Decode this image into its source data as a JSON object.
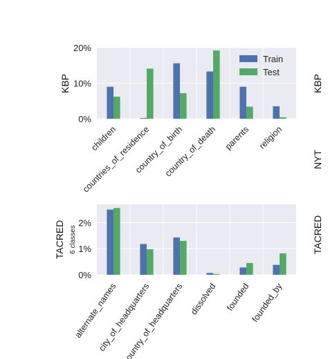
{
  "colors": {
    "train": "#4c72b0",
    "test": "#55a868",
    "plot_bg": "#eaeaf2",
    "grid": "#ffffff"
  },
  "chart_data": [
    {
      "type": "bar",
      "ylabel": "KBP",
      "y_tick_labels": [
        "0%",
        "10%",
        "20%"
      ],
      "ylim": [
        0,
        20
      ],
      "grid": true,
      "legend": "top-right",
      "categories": [
        "children",
        "countries_of_residence",
        "country_of_birth",
        "country_of_death",
        "parents",
        "religion"
      ],
      "series": [
        {
          "name": "Train",
          "values": [
            9.0,
            0.2,
            15.6,
            13.3,
            9.0,
            3.5
          ]
        },
        {
          "name": "Test",
          "values": [
            6.2,
            14.1,
            7.2,
            19.2,
            3.4,
            0.4
          ]
        }
      ]
    },
    {
      "type": "bar",
      "ylabel": "TACRED",
      "ysublabel": "6 classes",
      "y_tick_labels": [
        "0%",
        "1%",
        "2%"
      ],
      "ylim": [
        0,
        2.7
      ],
      "grid": true,
      "categories": [
        "alternate_names",
        "city_of_headquarters",
        "country_of_headquarters",
        "dissolved",
        "founded",
        "founded_by"
      ],
      "series": [
        {
          "name": "Train",
          "values": [
            2.5,
            1.18,
            1.43,
            0.07,
            0.28,
            0.38
          ]
        },
        {
          "name": "Test",
          "values": [
            2.56,
            0.98,
            1.3,
            0.03,
            0.45,
            0.82
          ]
        }
      ]
    }
  ],
  "side_labels": [
    "KBP",
    "NYT",
    "TACRED"
  ]
}
